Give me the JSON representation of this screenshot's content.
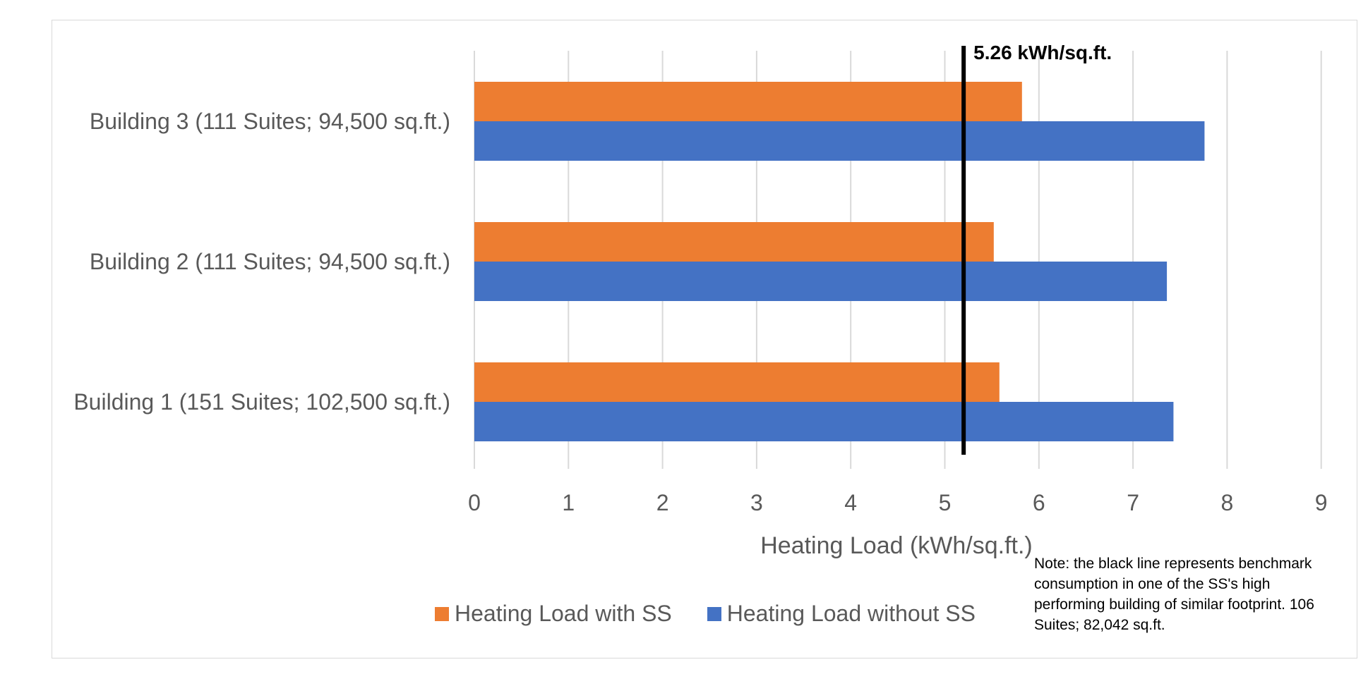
{
  "chart_data": {
    "type": "bar",
    "orientation": "horizontal",
    "categories": [
      "Building 1 (151 Suites; 102,500 sq.ft.)",
      "Building 2 (111 Suites; 94,500 sq.ft.)",
      "Building 3 (111 Suites; 94,500 sq.ft.)"
    ],
    "series": [
      {
        "name": "Heating Load with SS",
        "color": "#ed7d31",
        "values": [
          5.58,
          5.52,
          5.82
        ]
      },
      {
        "name": "Heating Load without SS",
        "color": "#4472c4",
        "values": [
          7.43,
          7.36,
          7.76
        ]
      }
    ],
    "xlabel": "Heating Load (kWh/sq.ft.)",
    "xlim": [
      0,
      9
    ],
    "xticks": [
      "0",
      "1",
      "2",
      "3",
      "4",
      "5",
      "6",
      "7",
      "8",
      "9"
    ],
    "grid": true,
    "legend_position": "bottom",
    "reference_line": {
      "value": 5.26,
      "label": "5.26 kWh/sq.ft.",
      "color": "#000000"
    },
    "note": "Note: the black line represents benchmark consumption in one of the SS's high performing building of similar footprint. 106 Suites; 82,042 sq.ft."
  }
}
